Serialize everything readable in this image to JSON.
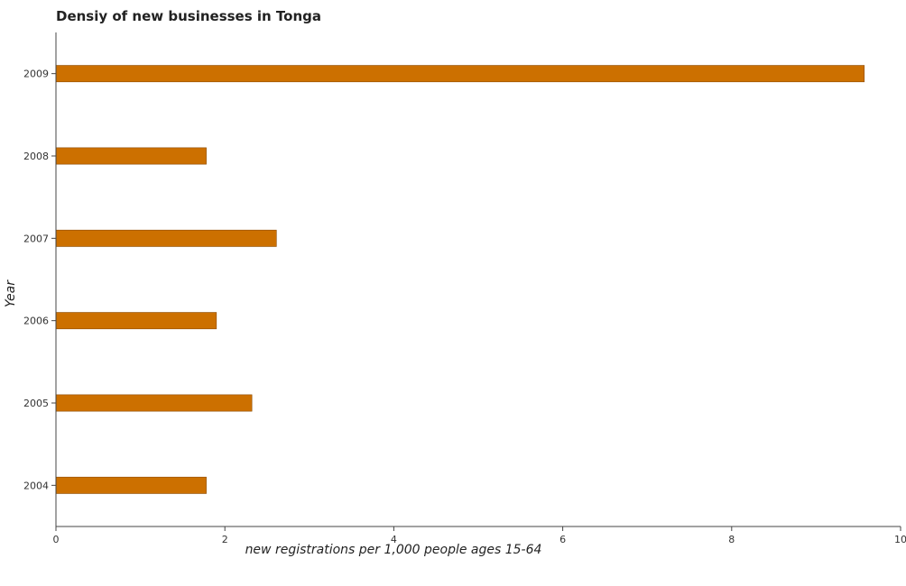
{
  "chart_data": {
    "type": "bar",
    "orientation": "horizontal",
    "title": "Densiy of new businesses in Tonga",
    "xlabel": "new registrations per 1,000 people ages 15-64",
    "ylabel": "Year",
    "categories": [
      "2004",
      "2005",
      "2006",
      "2007",
      "2008",
      "2009"
    ],
    "values": [
      1.78,
      2.32,
      1.9,
      2.61,
      1.78,
      9.57
    ],
    "xlim": [
      0,
      10
    ],
    "xticks": [
      "0",
      "2",
      "4",
      "6",
      "8",
      "10"
    ],
    "grid": false,
    "bar_color": "#cc7000",
    "bar_edge_color": "#8b4a00"
  }
}
